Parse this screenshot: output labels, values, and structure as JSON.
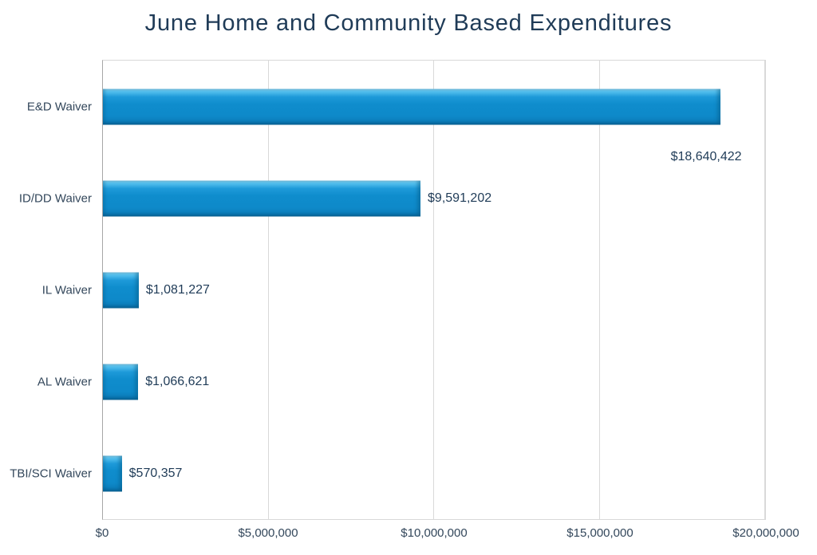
{
  "title": "June Home and Community Based Expenditures",
  "colors": {
    "title_text": "#1F3B57",
    "axis_label_text": "#33475B",
    "data_label_text": "#1F3B57",
    "bar_fill_main": "#0F8DCD",
    "bar_fill_highlight": "#57C2EF",
    "bar_fill_shadow": "#085F92",
    "gridline": "#D9D9D9",
    "axis_line": "#A6A6A6"
  },
  "chart_data": {
    "type": "bar",
    "orientation": "horizontal",
    "title": "June Home and Community Based Expenditures",
    "categories": [
      "E&D Waiver",
      "ID/DD Waiver",
      "IL Waiver",
      "AL Waiver",
      "TBI/SCI Waiver"
    ],
    "values": [
      18640422,
      9591202,
      1081227,
      1066621,
      570357
    ],
    "data_labels": [
      "$18,640,422",
      "$9,591,202",
      "$1,081,227",
      "$1,066,621",
      "$570,357"
    ],
    "data_label_positions": [
      "below-end",
      "side",
      "side",
      "side",
      "side"
    ],
    "xlabel": "",
    "ylabel": "",
    "x_ticks": [
      "$0",
      "$5,000,000",
      "$10,000,000",
      "$15,000,000",
      "$20,000,000"
    ],
    "x_tick_values": [
      0,
      5000000,
      10000000,
      15000000,
      20000000
    ],
    "xlim": [
      0,
      20000000
    ],
    "grid": "vertical-major",
    "legend": "none"
  }
}
